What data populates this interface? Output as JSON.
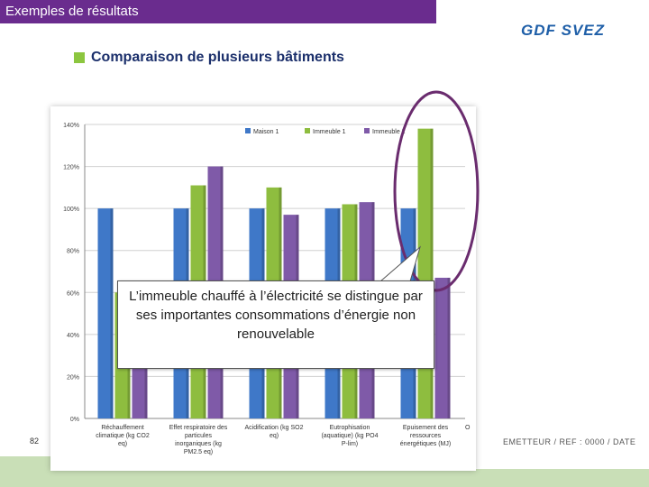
{
  "header": {
    "title": "Exemples de résultats",
    "logo_text": "GDF SVEZ"
  },
  "section": {
    "subtitle": "Comparaison de plusieurs bâtiments"
  },
  "callout": {
    "text": "L’immeuble  chauffé à l’électricité se distingue par ses importantes consommations d’énergie non renouvelable"
  },
  "footer": {
    "page_number": "82",
    "reference": "EMETTEUR / REF : 0000 / DATE"
  },
  "colors": {
    "title_bar": "#6a2c8e",
    "maison1": "#3f78c8",
    "immeuble1": "#8ebd3f",
    "immeuble2": "#7f5aa8",
    "highlight_ellipse": "#6a2c6e"
  },
  "chart_data": {
    "type": "bar",
    "categories": [
      "Réchauffement climatique (kg CO2 eq)",
      "Effet respiratoire des particules inorganiques (kg PM2.5 eq)",
      "Acidification (kg SO2 eq)",
      "Eutrophisation (aquatique) (kg PO4 P-lim)",
      "Epuisement des ressources énergétiques (MJ)"
    ],
    "category_label_lines": [
      [
        "Réchauffement",
        "climatique (kg CO2",
        "eq)"
      ],
      [
        "Effet respiratoire des",
        "particules",
        "inorganiques (kg",
        "PM2.5 eq)"
      ],
      [
        "Acidification (kg SO2",
        "eq)"
      ],
      [
        "Eutrophisation",
        "(aquatique) (kg PO4",
        "P-lim)"
      ],
      [
        "Epuisement des",
        "ressources",
        "énergétiques (MJ)"
      ]
    ],
    "series": [
      {
        "name": "Maison 1",
        "values": [
          100,
          100,
          100,
          100,
          100
        ]
      },
      {
        "name": "Immeuble 1",
        "values": [
          60,
          111,
          110,
          102,
          138
        ]
      },
      {
        "name": "Immeuble 2",
        "values": [
          60,
          120,
          97,
          103,
          67
        ]
      }
    ],
    "truncated_category_text": "O",
    "yticks": [
      "0%",
      "20%",
      "40%",
      "60%",
      "80%",
      "100%",
      "120%",
      "140%"
    ],
    "ylim": [
      0,
      140
    ],
    "legend_position": "top-right",
    "grid": true
  }
}
